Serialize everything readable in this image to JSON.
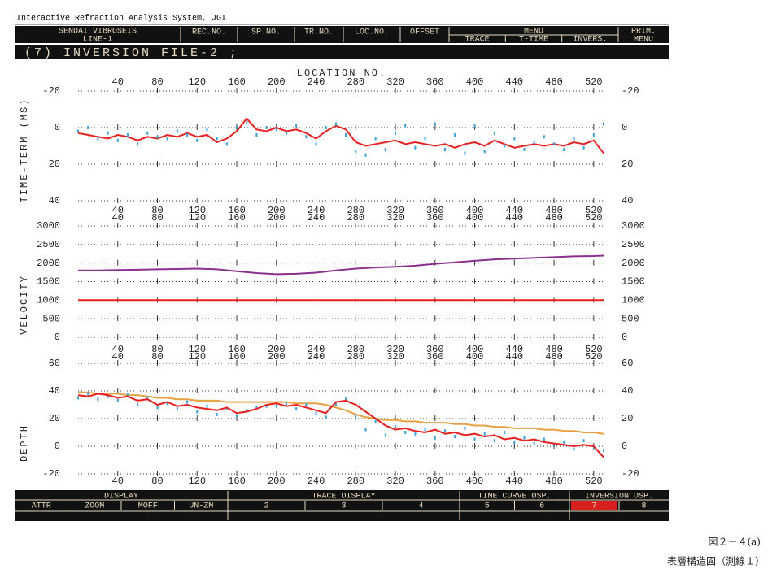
{
  "header": {
    "app_title": "Interactive Refraction Analysis System, JGI"
  },
  "top_bar": {
    "line_name": "SENDAI VIBROSEIS",
    "line_no": "LINE-1",
    "fields": [
      "REC.NO.",
      "SP.NO.",
      "TR.NO.",
      "LOC.NO.",
      "OFFSET"
    ],
    "menu": "MENU",
    "menu_items": [
      "TRACE",
      "T-TIME",
      "INVERS."
    ],
    "prim_menu": [
      "PRIM.",
      "MENU"
    ]
  },
  "title_bar": "(7)  INVERSION  FILE-2  ;",
  "x_axis_title": "LOCATION NO.",
  "chart_data": [
    {
      "type": "line",
      "y_label": "TIME-TERM (MS)",
      "inverted": true,
      "x": [
        0,
        10,
        20,
        30,
        40,
        50,
        60,
        70,
        80,
        90,
        100,
        110,
        120,
        130,
        140,
        150,
        160,
        170,
        180,
        190,
        200,
        210,
        220,
        230,
        240,
        250,
        260,
        270,
        280,
        290,
        300,
        310,
        320,
        330,
        340,
        350,
        360,
        370,
        380,
        390,
        400,
        410,
        420,
        430,
        440,
        450,
        460,
        470,
        480,
        490,
        500,
        510,
        520,
        530
      ],
      "xlim": [
        0,
        530
      ],
      "xticks": [
        40,
        80,
        120,
        160,
        200,
        240,
        280,
        320,
        360,
        400,
        440,
        480,
        520
      ],
      "ylim": [
        -20,
        40
      ],
      "yticks": [
        -20,
        0,
        20,
        40
      ],
      "series": [
        {
          "color": "#e82020",
          "style": "line",
          "values": [
            3,
            4,
            5,
            6,
            4,
            5,
            7,
            5,
            6,
            4,
            5,
            3,
            5,
            4,
            8,
            6,
            2,
            -5,
            1,
            2,
            0,
            2,
            1,
            3,
            6,
            2,
            -1,
            1,
            8,
            10,
            9,
            8,
            7,
            9,
            8,
            9,
            10,
            9,
            11,
            9,
            8,
            10,
            7,
            9,
            11,
            10,
            9,
            10,
            9,
            10,
            8,
            9,
            7,
            14
          ]
        },
        {
          "color": "#3aa0d8",
          "style": "dots",
          "values": [
            2,
            0,
            6,
            3,
            7,
            4,
            9,
            3,
            5,
            6,
            2,
            4,
            7,
            1,
            6,
            9,
            0,
            -3,
            4,
            0,
            1,
            3,
            -1,
            5,
            9,
            0,
            -2,
            4,
            13,
            15,
            6,
            12,
            3,
            -1,
            11,
            6,
            -2,
            12,
            4,
            14,
            -1,
            13,
            3,
            10,
            6,
            12,
            8,
            5,
            9,
            12,
            6,
            11,
            4,
            -2
          ]
        }
      ]
    },
    {
      "type": "line",
      "y_label": "VELOCITY",
      "x": [
        0,
        20,
        40,
        60,
        80,
        100,
        120,
        140,
        160,
        180,
        200,
        220,
        240,
        260,
        280,
        300,
        320,
        340,
        360,
        380,
        400,
        420,
        440,
        460,
        480,
        500,
        520,
        530
      ],
      "xlim": [
        0,
        530
      ],
      "xticks": [
        40,
        80,
        120,
        160,
        200,
        240,
        280,
        320,
        360,
        400,
        440,
        480,
        520
      ],
      "ylim": [
        0,
        3000
      ],
      "yticks": [
        0,
        500,
        1000,
        1500,
        2000,
        2500,
        3000
      ],
      "series": [
        {
          "color": "#8a3090",
          "style": "line",
          "values": [
            1800,
            1800,
            1810,
            1820,
            1830,
            1840,
            1850,
            1830,
            1780,
            1730,
            1700,
            1710,
            1740,
            1800,
            1850,
            1880,
            1900,
            1930,
            1980,
            2020,
            2060,
            2100,
            2120,
            2140,
            2160,
            2180,
            2190,
            2200
          ]
        },
        {
          "color": "#e82020",
          "style": "line",
          "values": [
            1000,
            1000,
            1000,
            1000,
            1000,
            1000,
            1000,
            1000,
            1000,
            1000,
            1000,
            1000,
            1000,
            1000,
            1000,
            1000,
            1000,
            1000,
            1000,
            1000,
            1000,
            1000,
            1000,
            1000,
            1000,
            1000,
            1000,
            1000
          ]
        }
      ]
    },
    {
      "type": "line",
      "y_label": "DEPTH",
      "x": [
        0,
        10,
        20,
        30,
        40,
        50,
        60,
        70,
        80,
        90,
        100,
        110,
        120,
        130,
        140,
        150,
        160,
        170,
        180,
        190,
        200,
        210,
        220,
        230,
        240,
        250,
        260,
        270,
        280,
        290,
        300,
        310,
        320,
        330,
        340,
        350,
        360,
        370,
        380,
        390,
        400,
        410,
        420,
        430,
        440,
        450,
        460,
        470,
        480,
        490,
        500,
        510,
        520,
        530
      ],
      "xlim": [
        0,
        530
      ],
      "xticks": [
        40,
        80,
        120,
        160,
        200,
        240,
        280,
        320,
        360,
        400,
        440,
        480,
        520
      ],
      "ylim": [
        -20,
        60
      ],
      "yticks": [
        -20,
        0,
        20,
        40,
        60
      ],
      "series": [
        {
          "color": "#e8a040",
          "style": "line",
          "values": [
            39,
            39,
            38,
            38,
            38,
            37,
            37,
            36,
            35,
            35,
            34,
            34,
            33,
            33,
            33,
            32,
            32,
            32,
            32,
            32,
            32,
            32,
            31,
            31,
            31,
            30,
            28,
            26,
            23,
            21,
            20,
            19,
            19,
            18,
            18,
            17,
            17,
            17,
            16,
            16,
            15,
            15,
            14,
            14,
            13,
            13,
            13,
            12,
            12,
            11,
            11,
            10,
            10,
            9
          ]
        },
        {
          "color": "#3aa0d8",
          "style": "dots",
          "values": [
            35,
            38,
            34,
            36,
            33,
            37,
            30,
            35,
            28,
            31,
            27,
            32,
            25,
            29,
            23,
            27,
            22,
            26,
            28,
            29,
            29,
            31,
            27,
            30,
            24,
            21,
            30,
            34,
            22,
            12,
            18,
            8,
            14,
            10,
            9,
            12,
            6,
            11,
            7,
            13,
            5,
            9,
            4,
            10,
            3,
            6,
            2,
            5,
            1,
            3,
            -2,
            4,
            -1,
            -3
          ]
        },
        {
          "color": "#e82020",
          "style": "line",
          "values": [
            37,
            36,
            38,
            37,
            35,
            36,
            33,
            34,
            30,
            32,
            29,
            30,
            28,
            27,
            26,
            28,
            24,
            25,
            27,
            30,
            31,
            29,
            30,
            28,
            26,
            24,
            32,
            33,
            30,
            25,
            20,
            15,
            12,
            13,
            11,
            10,
            12,
            9,
            10,
            8,
            9,
            7,
            8,
            5,
            6,
            4,
            5,
            3,
            2,
            1,
            0,
            1,
            0,
            -8
          ]
        }
      ]
    }
  ],
  "bottom_bar": {
    "groups": [
      {
        "title": "DISPLAY",
        "items": [
          "ATTR",
          "ZOOM",
          "MOFF",
          "UN-ZM"
        ]
      },
      {
        "title": "TRACE DISPLAY",
        "items": [
          "2",
          "3",
          "4"
        ]
      },
      {
        "title": "TIME CURVE DSP.",
        "items": [
          "5",
          "6"
        ]
      },
      {
        "title": "INVERSION DSP.",
        "items": [
          "7",
          "8"
        ]
      }
    ]
  },
  "caption": {
    "figure": "図２－４(a)",
    "title": "表層構造図（測線１）"
  }
}
